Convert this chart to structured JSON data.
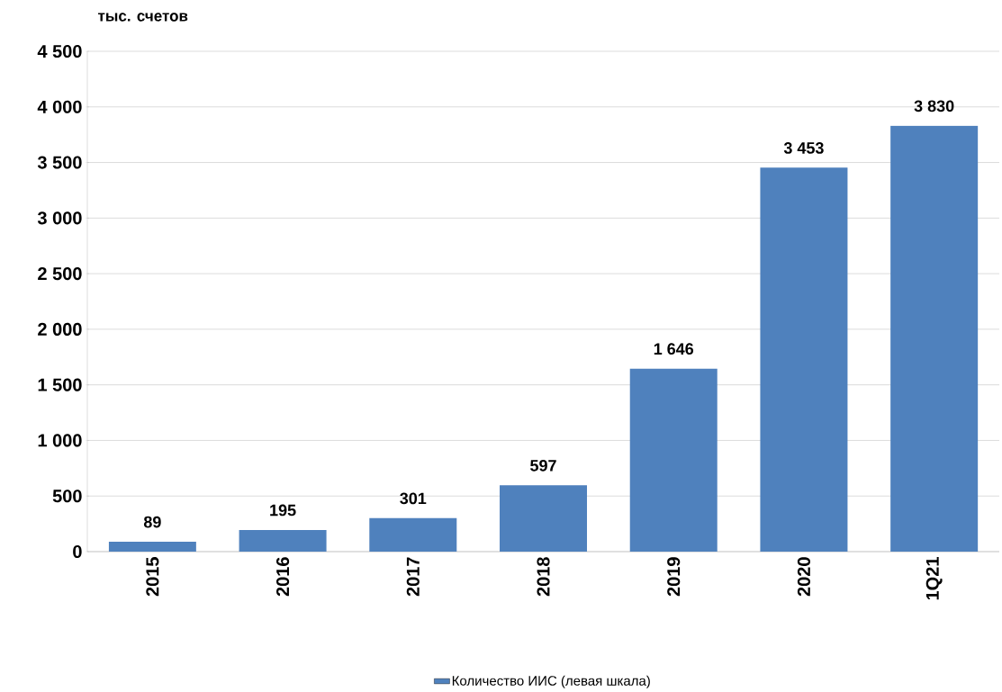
{
  "chart_data": {
    "type": "bar",
    "ylabel": "тыс. счетов",
    "categories": [
      "2015",
      "2016",
      "2017",
      "2018",
      "2019",
      "2020",
      "1Q21"
    ],
    "series": [
      {
        "name": "Количество ИИС  (левая шкала)",
        "color": "#4f81bd",
        "values": [
          89,
          195,
          301,
          597,
          1646,
          3453,
          3830
        ],
        "value_labels": [
          "89",
          "195",
          "301",
          "597",
          "1 646",
          "3 453",
          "3 830"
        ]
      }
    ],
    "ylim": [
      0,
      4500
    ],
    "yticks": [
      0,
      500,
      {
        "value": 1000,
        "label": "1 000"
      },
      {
        "value": 1500,
        "label": "1 500"
      },
      {
        "value": 2000,
        "label": "2 000"
      },
      {
        "value": 2500,
        "label": "2 500"
      },
      {
        "value": 3000,
        "label": "3 000"
      },
      {
        "value": 3500,
        "label": "3 500"
      },
      {
        "value": 4000,
        "label": "4 000"
      },
      {
        "value": 4500,
        "label": "4 500"
      }
    ],
    "grid": "y",
    "legend": "bottom"
  }
}
